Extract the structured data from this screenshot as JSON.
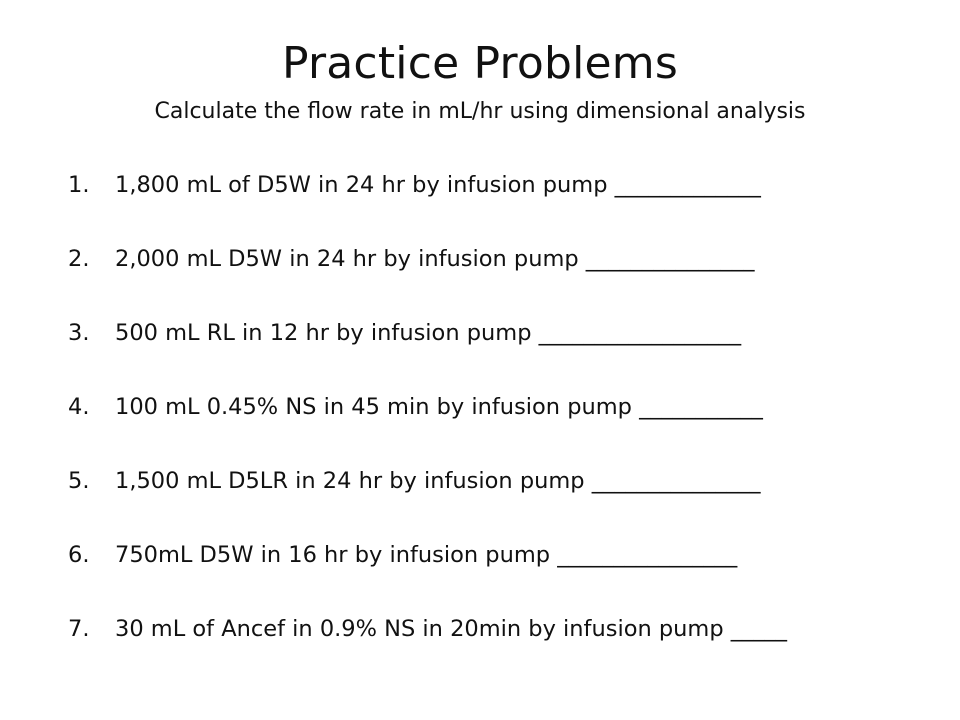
{
  "slide": {
    "title": "Practice Problems",
    "subtitle": "Calculate the flow rate in mL/hr using dimensional analysis",
    "problems": [
      {
        "number": "1.",
        "text": "1,800 mL of D5W in 24 hr by infusion pump  _____________"
      },
      {
        "number": "2.",
        "text": "2,000 mL D5W in 24 hr by infusion pump  _______________"
      },
      {
        "number": "3.",
        "text": "500 mL RL in 12 hr by infusion pump  __________________"
      },
      {
        "number": "4.",
        "text": "100 mL 0.45% NS in 45 min by infusion pump  ___________"
      },
      {
        "number": "5.",
        "text": "1,500 mL D5LR in 24 hr by infusion pump  _______________"
      },
      {
        "number": "6.",
        "text": "750mL D5W  in 16 hr by infusion pump  ________________"
      },
      {
        "number": "7.",
        "text": "30 mL of  Ancef in 0.9% NS in 20min by infusion pump _____"
      }
    ]
  }
}
